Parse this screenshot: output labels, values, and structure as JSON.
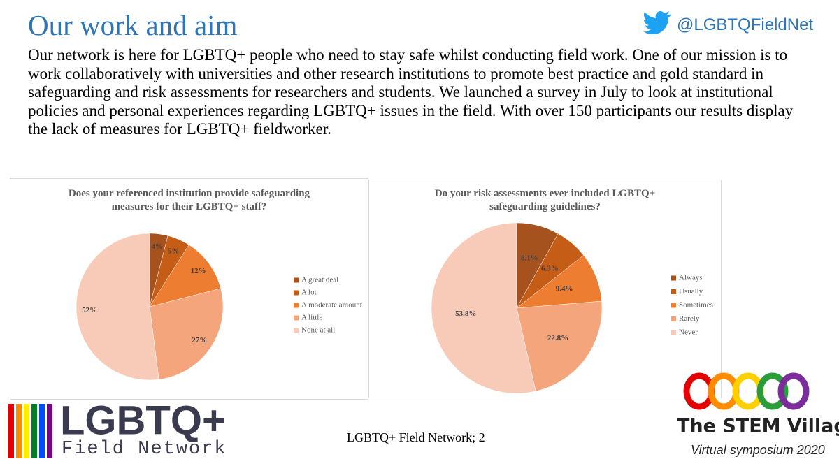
{
  "title": "Our work and aim",
  "handle": "@LGBTQFieldNet",
  "body": "Our network is here for LGBTQ+ people who need to stay safe whilst conducting field work. One of our mission is to work collaboratively with universities and other research institutions to promote best practice and gold standard in safeguarding and risk assessments for researchers and students. We launched a survey in July to look at institutional policies and personal experiences regarding LGBTQ+ issues in the field. With over 150 participants our results display the lack of measures for LGBTQ+ fieldworker.",
  "chart_data": [
    {
      "type": "pie",
      "title": "Does your referenced institution provide safeguarding measures for their LGBTQ+ staff?",
      "categories": [
        "A great deal",
        "A lot",
        "A moderate amount",
        "A little",
        "None at all"
      ],
      "values": [
        4,
        5,
        12,
        27,
        52
      ],
      "value_labels": [
        "4%",
        "5%",
        "12%",
        "27%",
        "52%"
      ],
      "colors": [
        "#a5521f",
        "#c65d17",
        "#ed7d31",
        "#f4a57c",
        "#f8cbb8"
      ]
    },
    {
      "type": "pie",
      "title": "Do your risk assessments ever included LGBTQ+ safeguarding guidelines?",
      "categories": [
        "Always",
        "Usually",
        "Sometimes",
        "Rarely",
        "Never"
      ],
      "values": [
        8.1,
        6.3,
        9.4,
        22.8,
        53.8
      ],
      "value_labels": [
        "8.1%",
        "6.3%",
        "9.4%",
        "22.8%",
        "53.8%"
      ],
      "colors": [
        "#a5521f",
        "#c65d17",
        "#ed7d31",
        "#f4a57c",
        "#f8cbb8"
      ]
    }
  ],
  "logo": {
    "name": "LGBTQ+",
    "subtitle": "Field Network"
  },
  "footer": "LGBTQ+ Field Network; 2",
  "event": {
    "name": "The STEM Village",
    "subtitle": "Virtual symposium 2020"
  }
}
